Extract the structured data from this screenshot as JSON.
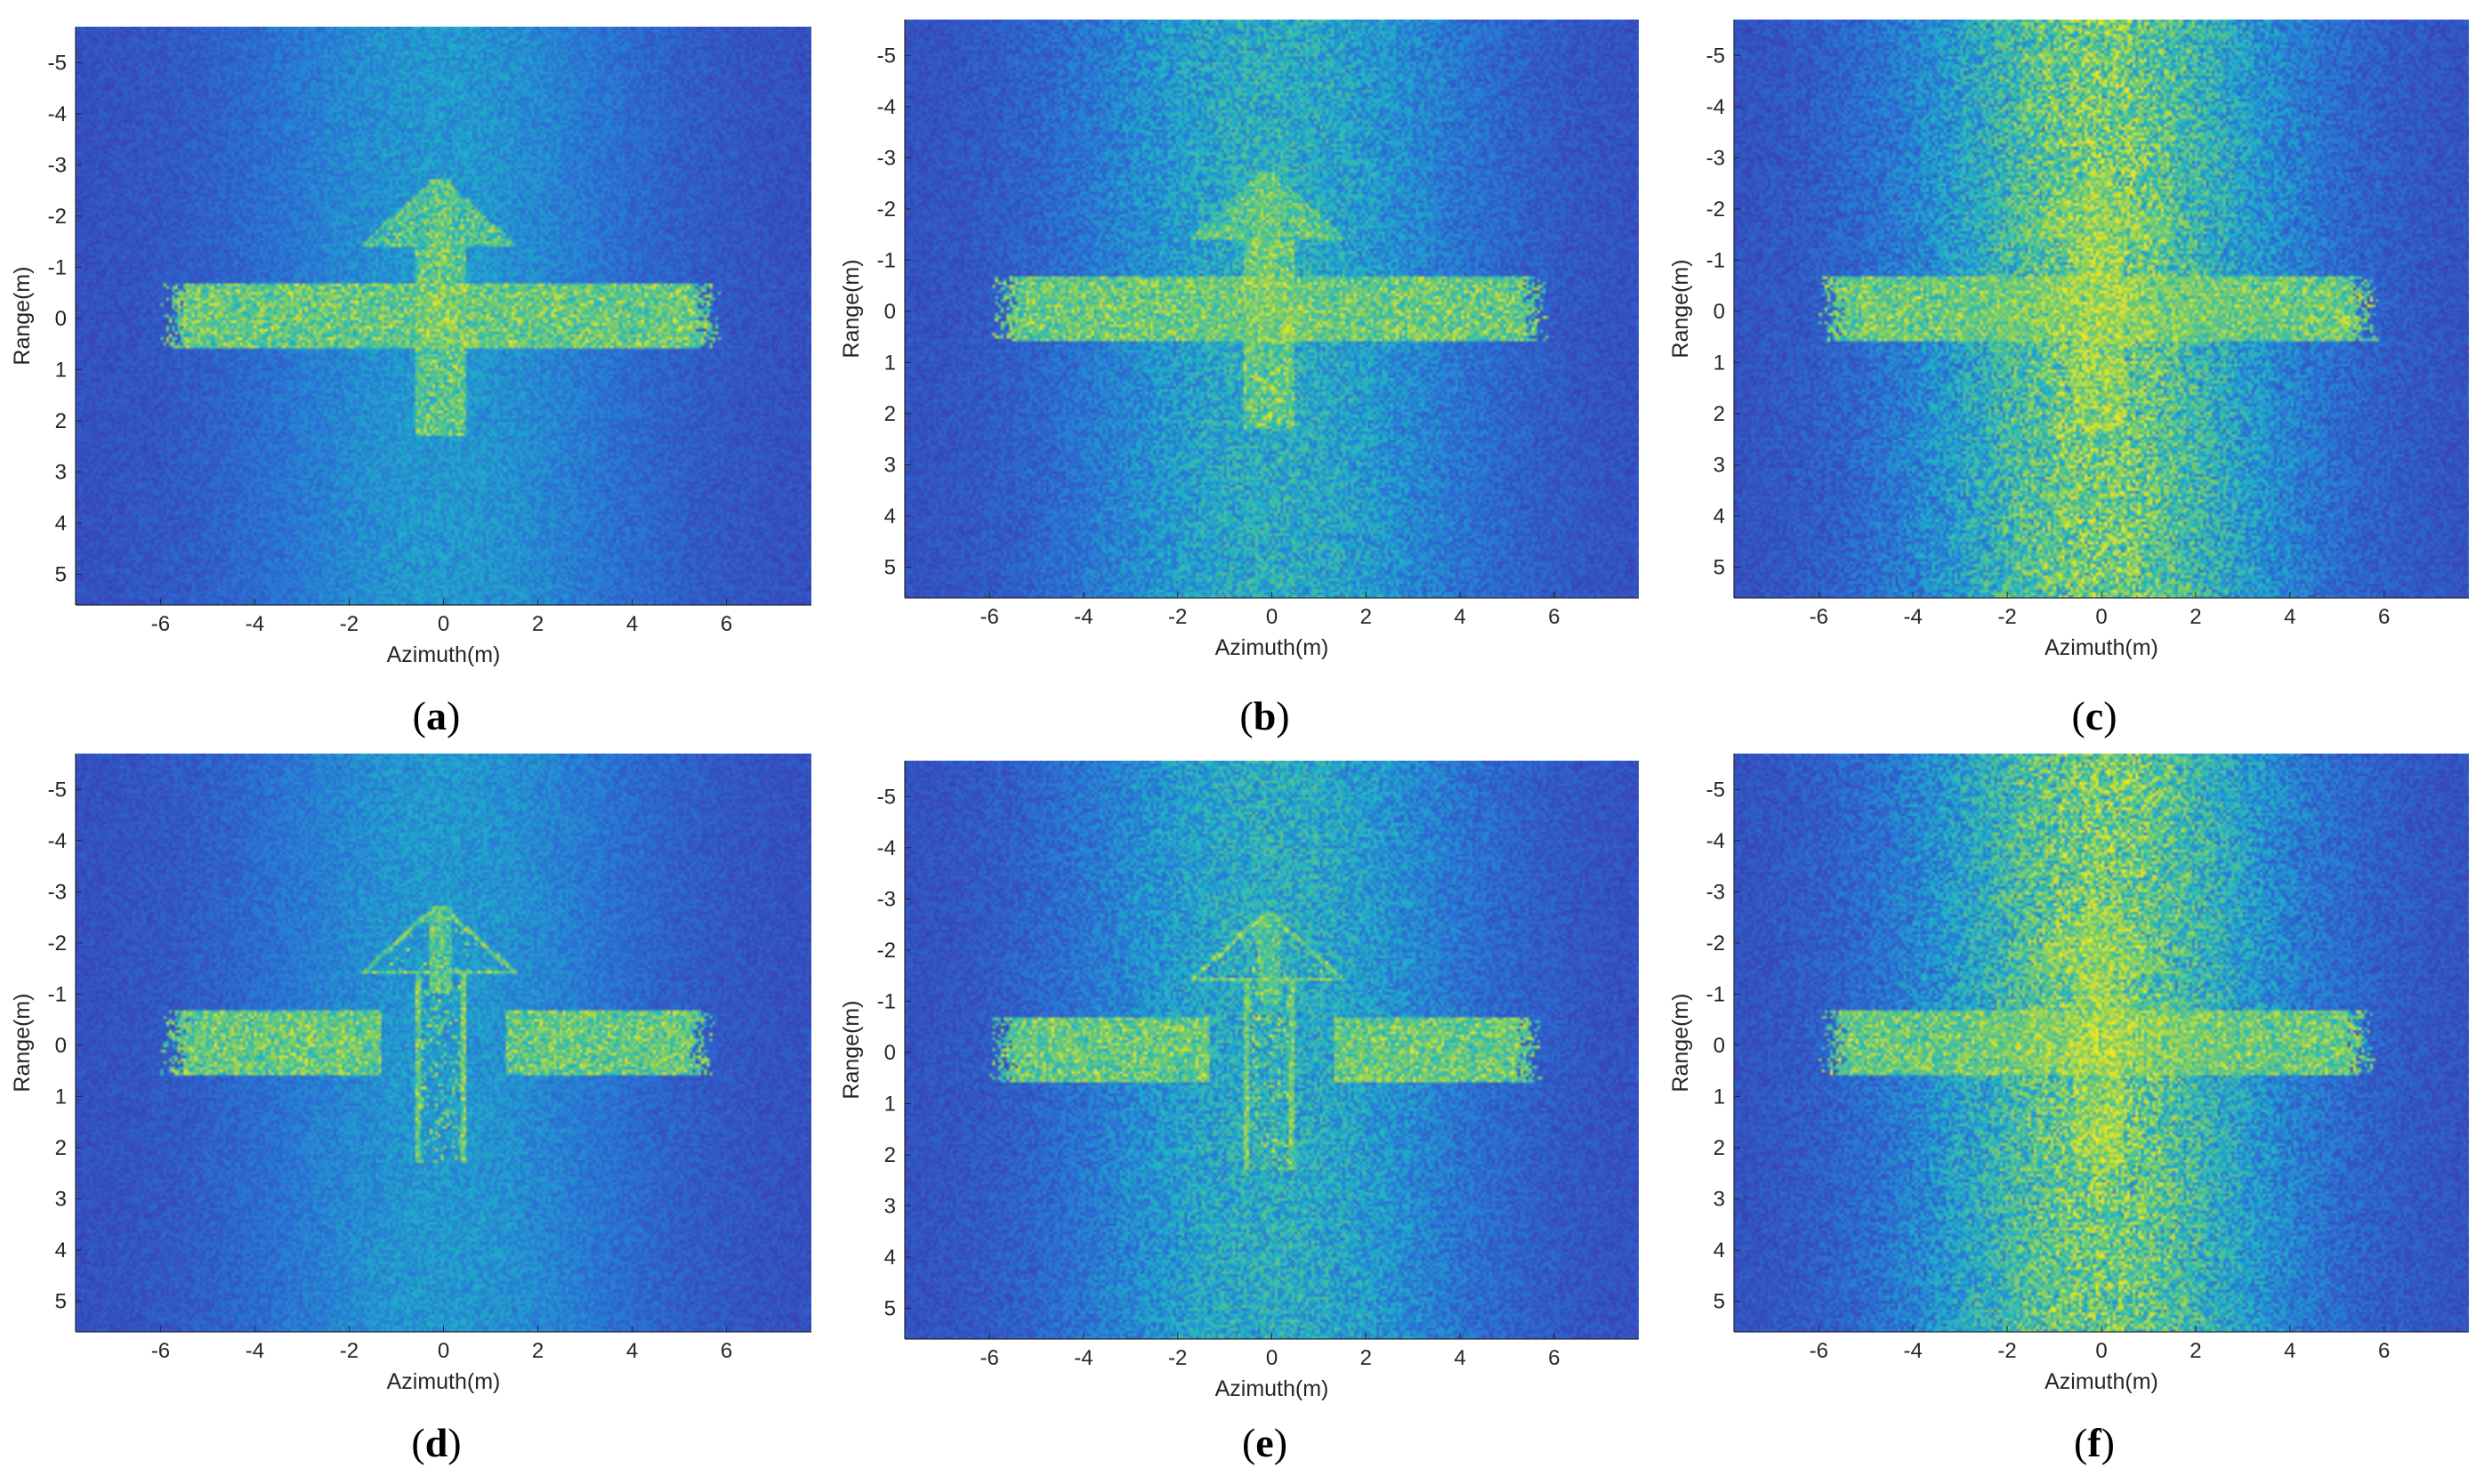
{
  "figure": {
    "colors": {
      "background_low": "#3f2fa8",
      "background_mid": "#2a71d6",
      "cyan": "#1fb5c8",
      "green": "#7bcd6a",
      "yellow": "#f5e71d",
      "axis": "#262626"
    }
  },
  "chart_data": [
    {
      "type": "heatmap",
      "panel_label": "a",
      "xlabel": "Azimuth(m)",
      "ylabel": "Range(m)",
      "xlim": [
        -7.8,
        7.8
      ],
      "ylim": [
        -5.7,
        5.6
      ],
      "y_reversed": true,
      "xticks": [
        -6,
        -4,
        -2,
        0,
        2,
        4,
        6
      ],
      "yticks": [
        -5,
        -4,
        -3,
        -2,
        -1,
        0,
        1,
        2,
        3,
        4,
        5
      ],
      "target": {
        "shape": "airplane",
        "wing_span_m": [
          -5.7,
          5.6
        ],
        "wing_range_m": [
          -0.7,
          0.6
        ],
        "fuselage_range_m": [
          -2.7,
          2.3
        ],
        "tail_range_m": [
          -2.7,
          -1.4
        ]
      },
      "background_noise": "low"
    },
    {
      "type": "heatmap",
      "panel_label": "b",
      "xlabel": "Azimuth(m)",
      "ylabel": "Range(m)",
      "xlim": [
        -7.8,
        7.8
      ],
      "ylim": [
        -5.7,
        5.6
      ],
      "y_reversed": true,
      "xticks": [
        -6,
        -4,
        -2,
        0,
        2,
        4,
        6
      ],
      "yticks": [
        -5,
        -4,
        -3,
        -2,
        -1,
        0,
        1,
        2,
        3,
        4,
        5
      ],
      "target": {
        "shape": "airplane",
        "wing_span_m": [
          -5.7,
          5.6
        ],
        "wing_range_m": [
          -0.7,
          0.6
        ],
        "fuselage_range_m": [
          -2.7,
          2.3
        ],
        "tail_range_m": [
          -2.7,
          -1.4
        ]
      },
      "background_noise": "medium"
    },
    {
      "type": "heatmap",
      "panel_label": "c",
      "xlabel": "Azimuth(m)",
      "ylabel": "Range(m)",
      "xlim": [
        -7.8,
        7.8
      ],
      "ylim": [
        -5.7,
        5.6
      ],
      "y_reversed": true,
      "xticks": [
        -6,
        -4,
        -2,
        0,
        2,
        4,
        6
      ],
      "yticks": [
        -5,
        -4,
        -3,
        -2,
        -1,
        0,
        1,
        2,
        3,
        4,
        5
      ],
      "target": {
        "shape": "airplane",
        "wing_span_m": [
          -5.7,
          5.6
        ],
        "wing_range_m": [
          -0.7,
          0.6
        ],
        "fuselage_range_m": [
          -2.7,
          2.3
        ],
        "tail_range_m": [
          -2.7,
          -1.4
        ]
      },
      "background_noise": "high"
    },
    {
      "type": "heatmap",
      "panel_label": "d",
      "xlabel": "Azimuth(m)",
      "ylabel": "Range(m)",
      "xlim": [
        -7.8,
        7.8
      ],
      "ylim": [
        -5.7,
        5.6
      ],
      "y_reversed": true,
      "xticks": [
        -6,
        -4,
        -2,
        0,
        2,
        4,
        6
      ],
      "yticks": [
        -5,
        -4,
        -3,
        -2,
        -1,
        0,
        1,
        2,
        3,
        4,
        5
      ],
      "target": {
        "shape": "airplane-outline",
        "wing_span_m": [
          -5.7,
          5.5
        ],
        "wing_range_m": [
          -0.7,
          0.6
        ],
        "fuselage_range_m": [
          -2.7,
          2.3
        ],
        "tail_range_m": [
          -2.7,
          -1.4
        ]
      },
      "background_noise": "low"
    },
    {
      "type": "heatmap",
      "panel_label": "e",
      "xlabel": "Azimuth(m)",
      "ylabel": "Range(m)",
      "xlim": [
        -7.8,
        7.8
      ],
      "ylim": [
        -5.7,
        5.6
      ],
      "y_reversed": true,
      "xticks": [
        -6,
        -4,
        -2,
        0,
        2,
        4,
        6
      ],
      "yticks": [
        -5,
        -4,
        -3,
        -2,
        -1,
        0,
        1,
        2,
        3,
        4,
        5
      ],
      "target": {
        "shape": "airplane-outline",
        "wing_span_m": [
          -5.7,
          5.5
        ],
        "wing_range_m": [
          -0.7,
          0.6
        ],
        "fuselage_range_m": [
          -2.7,
          2.3
        ],
        "tail_range_m": [
          -2.7,
          -1.4
        ]
      },
      "background_noise": "medium"
    },
    {
      "type": "heatmap",
      "panel_label": "f",
      "xlabel": "Azimuth(m)",
      "ylabel": "Range(m)",
      "xlim": [
        -7.8,
        7.8
      ],
      "ylim": [
        -5.7,
        5.6
      ],
      "y_reversed": true,
      "xticks": [
        -6,
        -4,
        -2,
        0,
        2,
        4,
        6
      ],
      "yticks": [
        -5,
        -4,
        -3,
        -2,
        -1,
        0,
        1,
        2,
        3,
        4,
        5
      ],
      "target": {
        "shape": "airplane",
        "wing_span_m": [
          -5.7,
          5.5
        ],
        "wing_range_m": [
          -0.7,
          0.6
        ],
        "fuselage_range_m": [
          -2.7,
          2.3
        ],
        "tail_range_m": [
          -2.7,
          -1.4
        ]
      },
      "background_noise": "high"
    }
  ]
}
